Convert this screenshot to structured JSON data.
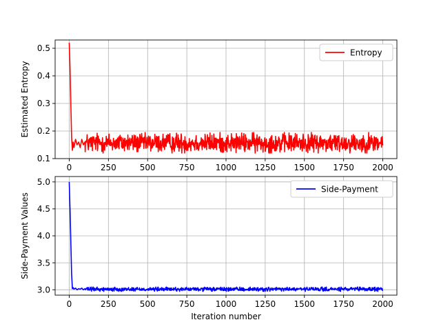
{
  "chart_data": [
    {
      "type": "line",
      "ylabel": "Estimated Entropy",
      "xlabel": "",
      "xlim": [
        -90,
        2090
      ],
      "ylim": [
        0.1,
        0.53
      ],
      "xticks": [
        0,
        250,
        500,
        750,
        1000,
        1250,
        1500,
        1750,
        2000
      ],
      "yticks": [
        0.1,
        0.2,
        0.3,
        0.4,
        0.5
      ],
      "grid": true,
      "legend_position": "top-right",
      "series": [
        {
          "name": "Entropy",
          "color": "#ff0000",
          "x": [
            0,
            5,
            10,
            15,
            20,
            25,
            30,
            40,
            50,
            60,
            70,
            80,
            90,
            100
          ],
          "y": [
            0.52,
            0.43,
            0.3,
            0.18,
            0.13,
            0.16,
            0.14,
            0.17,
            0.15,
            0.16,
            0.14,
            0.17,
            0.15,
            0.16
          ],
          "steady_state": {
            "from": 100,
            "to": 2000,
            "center": 0.157,
            "min": 0.12,
            "max": 0.195
          }
        }
      ]
    },
    {
      "type": "line",
      "ylabel": "Side-Payment Values",
      "xlabel": "Iteration number",
      "xlim": [
        -90,
        2090
      ],
      "ylim": [
        2.9,
        5.1
      ],
      "xticks": [
        0,
        250,
        500,
        750,
        1000,
        1250,
        1500,
        1750,
        2000
      ],
      "yticks": [
        3.0,
        3.5,
        4.0,
        4.5,
        5.0
      ],
      "grid": true,
      "legend_position": "top-right",
      "series": [
        {
          "name": "Side-Payment",
          "color": "#0000ff",
          "x": [
            0,
            5,
            10,
            15,
            20,
            25,
            30,
            40,
            50,
            60,
            70,
            80,
            90,
            100
          ],
          "y": [
            5.0,
            4.5,
            3.9,
            3.3,
            3.02,
            3.04,
            3.01,
            3.03,
            3.0,
            3.02,
            3.01,
            3.03,
            3.0,
            3.02
          ],
          "steady_state": {
            "from": 100,
            "to": 2000,
            "center": 3.01,
            "min": 2.97,
            "max": 3.05
          }
        }
      ]
    }
  ]
}
